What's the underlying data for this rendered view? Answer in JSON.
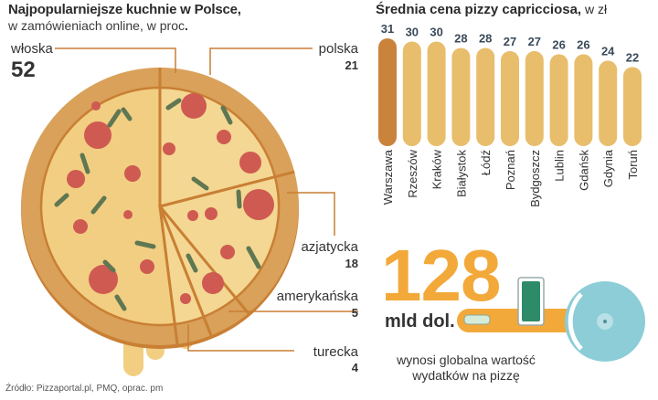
{
  "left_chart": {
    "title": "Najpopularniejsze kuchnie w Polsce,",
    "subtitle_main": "w zamówieniach online, w proc",
    "subtitle_end": "."
  },
  "right_chart": {
    "title_bold": "Średnia cena pizzy capricciosa,",
    "title_unit": " w zł"
  },
  "stat": {
    "value": "128",
    "unit": "mld dol.",
    "desc_line1": "wynosi globalna wartość",
    "desc_line2": "wydatków na pizzę"
  },
  "source": "Źródło: Pizzaportal.pl, PMQ, oprac. pm",
  "colors": {
    "crust": "#d9a15a",
    "crust_shadow": "#c97f34",
    "cheese_main": "#f1ce82",
    "cheese_light": "#f3d792",
    "pepperoni": "#cf5a51",
    "olive": "#5f7752",
    "bar_default": "#e8be6c",
    "bar_highlight": "#c9833b",
    "cutter_blade": "#8ccdd7",
    "cutter_handle": "#f2a93a",
    "accent_orange": "#f2a93a"
  },
  "chart_data": [
    {
      "type": "pie",
      "title": "Najpopularniejsze kuchnie w Polsce,",
      "subtitle": "w zamówieniach online, w proc.",
      "slices": [
        {
          "label": "włoska",
          "value": 52
        },
        {
          "label": "polska",
          "value": 21
        },
        {
          "label": "azjatycka",
          "value": 18
        },
        {
          "label": "amerykańska",
          "value": 5
        },
        {
          "label": "turecka",
          "value": 4
        }
      ]
    },
    {
      "type": "bar",
      "title": "Średnia cena pizzy capricciosa, w zł",
      "categories": [
        "Warszawa",
        "Rzeszów",
        "Kraków",
        "Białystok",
        "Łódź",
        "Poznań",
        "Bydgoszcz",
        "Lublin",
        "Gdańsk",
        "Gdynia",
        "Toruń"
      ],
      "values": [
        31,
        30,
        30,
        28,
        28,
        27,
        27,
        26,
        26,
        24,
        22
      ],
      "highlight": "Warszawa"
    }
  ]
}
